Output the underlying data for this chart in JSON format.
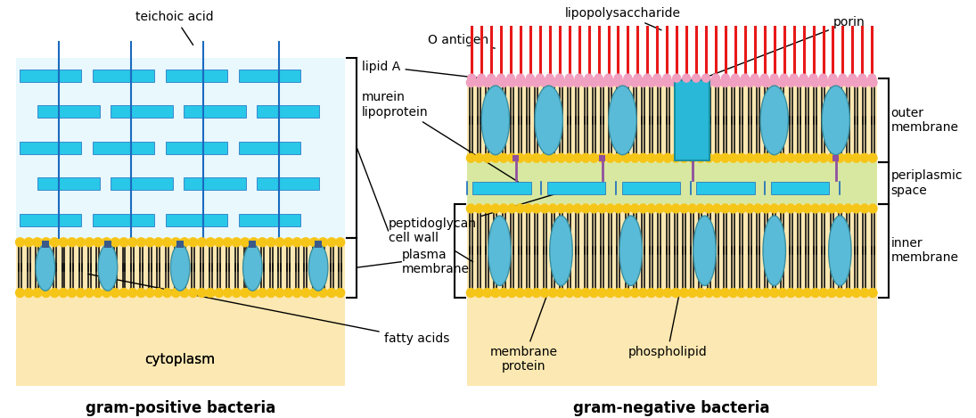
{
  "bg_color": "#ffffff",
  "cytoplasm_color": "#fce8b2",
  "peptidoglycan_color": "#29c7e8",
  "pg_bg_color": "#e8f8fd",
  "membrane_head_gold": "#f5c518",
  "membrane_tails_black": "#111111",
  "membrane_protein_color": "#5abbd8",
  "teichoic_color": "#1a6abf",
  "lps_red": "#e81818",
  "lipid_A_pink": "#f0a0c0",
  "murein_purple": "#9050a0",
  "porin_teal": "#29b8d8",
  "periplasmic_green": "#d8e8a0",
  "periplasm_pg_color": "#29c7e8",
  "gram_pos_label": "gram-positive bacteria",
  "gram_neg_label": "gram-negative bacteria",
  "label_teichoic_acid": "teichoic acid",
  "label_O_antigen": "O antigen",
  "label_lipopolysaccharide": "lipopolysaccharide",
  "label_porin": "porin",
  "label_lipid_A": "lipid A",
  "label_murein": "murein",
  "label_lipoprotein": "lipoprotein",
  "label_peptidoglycan": "peptidoglycan\ncell wall",
  "label_plasma_membrane": "plasma\nmembrane",
  "label_cytoplasm": "cytoplasm",
  "label_fatty_acids": "fatty acids",
  "label_outer_membrane": "outer\nmembrane",
  "label_periplasmic_space": "periplasmic\nspace",
  "label_inner_membrane": "inner\nmembrane",
  "label_membrane_protein": "membrane\nprotein",
  "label_phospholipid": "phospholipid"
}
